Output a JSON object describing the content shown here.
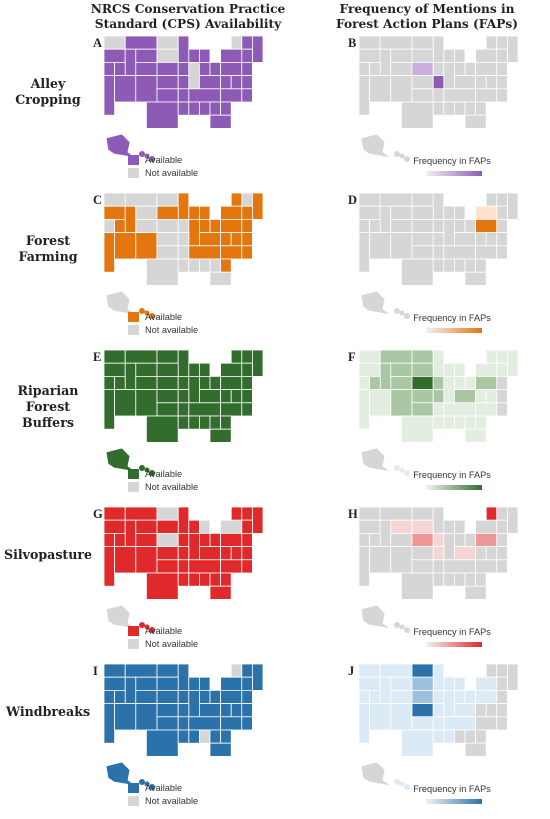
{
  "headers": {
    "left": "NRCS Conservation Practice Standard (CPS) Availability",
    "right": "Frequency of Mentions in Forest Action Plans (FAPs)"
  },
  "legend": {
    "available": "Available",
    "not_available": "Not available",
    "frequency": "Frequency in FAPs"
  },
  "colors": {
    "not_available": "#d6d6d6",
    "state_border": "#ffffff"
  },
  "rows": [
    {
      "title": "Alley Cropping",
      "letter_left": "A",
      "letter_right": "B",
      "color": "#8d5bb5",
      "light": "#e9dcf2",
      "mid": "#c9ade0",
      "na_states": [
        "WA",
        "ND",
        "SD",
        "IL",
        "VT"
      ],
      "fap_light": [],
      "fap_mid": [
        "NE"
      ],
      "fap_dark": [
        "MO"
      ]
    },
    {
      "title": "Forest Farming",
      "letter_left": "C",
      "letter_right": "D",
      "color": "#e3760f",
      "light": "#fbe3cf",
      "mid": "#f2b57f",
      "available": [
        "OR",
        "CA",
        "ID",
        "UT",
        "AZ",
        "NM",
        "SD",
        "MN",
        "WI",
        "IL",
        "IN",
        "OH",
        "KY",
        "TN",
        "NC",
        "SC",
        "VA",
        "WV",
        "MD",
        "PA",
        "NY",
        "VT",
        "MA",
        "ME",
        "NJ",
        "MI",
        "HI",
        "CT"
      ],
      "fap_light": [
        "NY"
      ],
      "fap_mid": [],
      "fap_dark": [
        "PA"
      ]
    },
    {
      "title": "Riparian Forest Buffers",
      "letter_left": "E",
      "letter_right": "F",
      "color": "#336d2e",
      "light": "#e3eee0",
      "mid": "#a9c7a3",
      "na_states": [],
      "fap_light": [
        "WA",
        "OR",
        "CA",
        "NV",
        "AZ",
        "TX",
        "MN",
        "WI",
        "MI",
        "IL",
        "IN",
        "OH",
        "WV",
        "VA",
        "NC",
        "SC",
        "GA",
        "FL",
        "AL",
        "MS",
        "LA",
        "AR",
        "TN",
        "NY",
        "VT",
        "NH",
        "ME",
        "MA",
        "HI"
      ],
      "fap_mid": [
        "ID",
        "MT",
        "UT",
        "CO",
        "NM",
        "OK",
        "MO",
        "IA",
        "KY",
        "PA",
        "ND",
        "WY",
        "SD",
        "KS"
      ],
      "fap_dark": [
        "NE"
      ]
    },
    {
      "title": "Silvopasture",
      "letter_left": "G",
      "letter_right": "H",
      "color": "#e0292a",
      "light": "#f8d5d5",
      "mid": "#ee9696",
      "na_states": [
        "ND",
        "NE",
        "MI",
        "NY",
        "AK"
      ],
      "fap_light": [
        "WY",
        "SD",
        "MO",
        "KY",
        "IA"
      ],
      "fap_mid": [
        "NE",
        "PA"
      ],
      "fap_dark": [
        "VT"
      ]
    },
    {
      "title": "Windbreaks",
      "letter_left": "I",
      "letter_right": "J",
      "color": "#2b72aa",
      "light": "#dceaf5",
      "mid": "#9cc0de",
      "na_states": [
        "AL",
        "VT"
      ],
      "fap_light": [
        "WA",
        "OR",
        "CA",
        "NV",
        "ID",
        "MT",
        "WY",
        "UT",
        "CO",
        "AZ",
        "NM",
        "TX",
        "OK",
        "MN",
        "IA",
        "MO",
        "AR",
        "LA",
        "WI",
        "IL",
        "MI",
        "IN",
        "OH",
        "KY",
        "TN",
        "MS",
        "NY",
        "PA",
        "HI"
      ],
      "fap_mid": [
        "SD",
        "NE"
      ],
      "fap_dark": [
        "ND",
        "KS"
      ]
    }
  ]
}
